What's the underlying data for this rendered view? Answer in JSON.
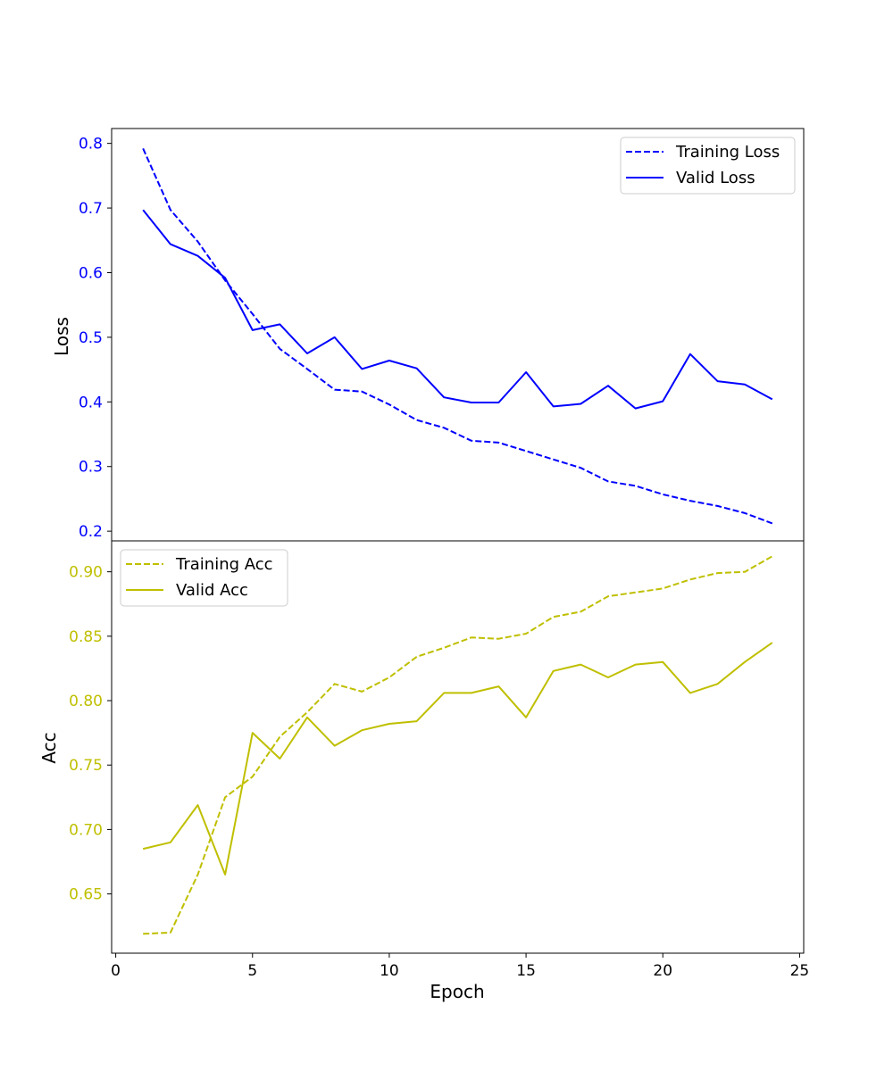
{
  "chart_data": [
    {
      "type": "line",
      "panel": "top",
      "ylabel": "Loss",
      "xlabel": "",
      "xlim": [
        -0.15,
        25.15
      ],
      "ylim": [
        0.185,
        0.823
      ],
      "yticks": [
        0.2,
        0.3,
        0.4,
        0.5,
        0.6,
        0.7,
        0.8
      ],
      "ytick_labels": [
        "0.2",
        "0.3",
        "0.4",
        "0.5",
        "0.6",
        "0.7",
        "0.8"
      ],
      "tick_color": "#0000ff",
      "grid": false,
      "legend_position": "upper right",
      "x": [
        1,
        2,
        3,
        4,
        5,
        6,
        7,
        8,
        9,
        10,
        11,
        12,
        13,
        14,
        15,
        16,
        17,
        18,
        19,
        20,
        21,
        22,
        23,
        24
      ],
      "series": [
        {
          "name": "Training Loss",
          "color": "#0000ff",
          "dash": "dashed",
          "values": [
            0.792,
            0.697,
            0.648,
            0.588,
            0.536,
            0.482,
            0.451,
            0.419,
            0.416,
            0.396,
            0.372,
            0.36,
            0.34,
            0.337,
            0.324,
            0.311,
            0.298,
            0.277,
            0.27,
            0.257,
            0.247,
            0.239,
            0.228,
            0.212
          ]
        },
        {
          "name": "Valid Loss",
          "color": "#0000ff",
          "dash": "solid",
          "values": [
            0.697,
            0.644,
            0.626,
            0.592,
            0.511,
            0.52,
            0.475,
            0.5,
            0.451,
            0.464,
            0.452,
            0.407,
            0.399,
            0.399,
            0.446,
            0.393,
            0.397,
            0.425,
            0.39,
            0.401,
            0.474,
            0.432,
            0.427,
            0.404
          ]
        }
      ]
    },
    {
      "type": "line",
      "panel": "bottom",
      "ylabel": "Acc",
      "xlabel": "Epoch",
      "xlim": [
        -0.15,
        25.15
      ],
      "ylim": [
        0.604,
        0.924
      ],
      "xticks": [
        0,
        5,
        10,
        15,
        20,
        25
      ],
      "xtick_labels": [
        "0",
        "5",
        "10",
        "15",
        "20",
        "25"
      ],
      "yticks": [
        0.65,
        0.7,
        0.75,
        0.8,
        0.85,
        0.9
      ],
      "ytick_labels": [
        "0.65",
        "0.70",
        "0.75",
        "0.80",
        "0.85",
        "0.90"
      ],
      "tick_color": "#bfbf00",
      "grid": false,
      "legend_position": "upper left",
      "x": [
        1,
        2,
        3,
        4,
        5,
        6,
        7,
        8,
        9,
        10,
        11,
        12,
        13,
        14,
        15,
        16,
        17,
        18,
        19,
        20,
        21,
        22,
        23,
        24
      ],
      "series": [
        {
          "name": "Training Acc",
          "color": "#bfbf00",
          "dash": "dashed",
          "values": [
            0.619,
            0.62,
            0.665,
            0.725,
            0.741,
            0.772,
            0.791,
            0.813,
            0.807,
            0.818,
            0.834,
            0.841,
            0.849,
            0.848,
            0.852,
            0.865,
            0.869,
            0.881,
            0.884,
            0.887,
            0.894,
            0.899,
            0.9,
            0.912
          ]
        },
        {
          "name": "Valid Acc",
          "color": "#bfbf00",
          "dash": "solid",
          "values": [
            0.685,
            0.69,
            0.719,
            0.665,
            0.775,
            0.755,
            0.787,
            0.765,
            0.777,
            0.782,
            0.784,
            0.806,
            0.806,
            0.811,
            0.787,
            0.823,
            0.828,
            0.818,
            0.828,
            0.83,
            0.806,
            0.813,
            0.83,
            0.845
          ]
        }
      ]
    }
  ]
}
